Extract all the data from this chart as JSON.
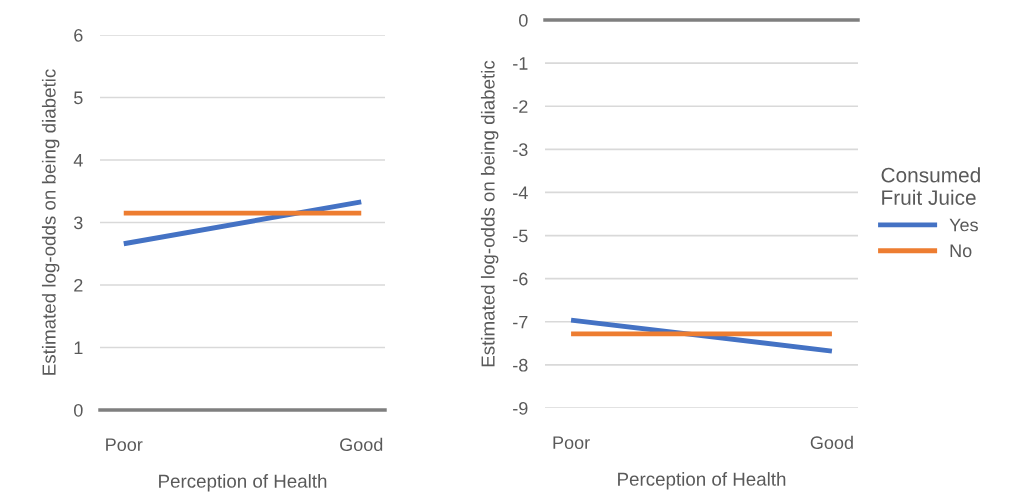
{
  "chart_data": [
    {
      "type": "line",
      "xlabel": "Perception of Health",
      "ylabel": "Estimated log-odds on being diabetic",
      "categories": [
        "Poor",
        "Good"
      ],
      "series": [
        {
          "color": "#4472c4",
          "values": [
            2.66,
            3.33
          ]
        },
        {
          "color": "#ed7d31",
          "values": [
            3.15,
            3.15
          ]
        }
      ],
      "ylim": [
        0,
        6
      ],
      "yticks": [
        0,
        1,
        2,
        3,
        4,
        5,
        6
      ],
      "grid": "y",
      "legend": false,
      "marker": "none",
      "line_style": "solid"
    },
    {
      "type": "line",
      "xlabel": "Perception of Health",
      "ylabel": "Estimated log-odds on being diabetic",
      "legend_title": "Consumed Fruit Juice",
      "categories": [
        "Poor",
        "Good"
      ],
      "series": [
        {
          "name": "Yes",
          "color": "#4472c4",
          "values": [
            -6.96,
            -7.68
          ]
        },
        {
          "name": "No",
          "color": "#ed7d31",
          "values": [
            -7.28,
            -7.28
          ]
        }
      ],
      "ylim": [
        -9,
        0
      ],
      "yticks": [
        -9,
        -8,
        -7,
        -6,
        -5,
        -4,
        -3,
        -2,
        -1,
        0
      ],
      "grid": "y",
      "legend": "right",
      "marker": "none",
      "line_style": "solid"
    }
  ]
}
